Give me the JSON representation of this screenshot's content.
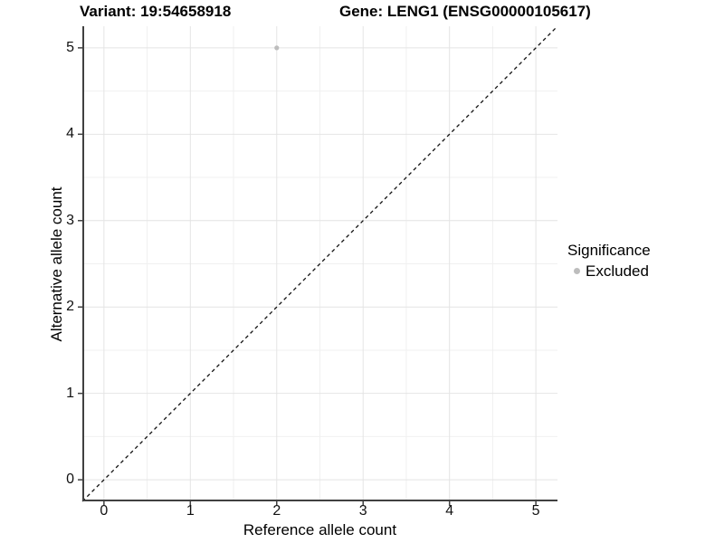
{
  "chart_data": {
    "type": "scatter",
    "title_left": "Variant: 19:54658918",
    "title_right": "Gene: LENG1 (ENSG00000105617)",
    "xlabel": "Reference allele count",
    "ylabel": "Alternative allele count",
    "xlim": [
      -0.25,
      5.25
    ],
    "ylim": [
      -0.25,
      5.25
    ],
    "xticks": [
      0,
      1,
      2,
      3,
      4,
      5
    ],
    "yticks": [
      0,
      1,
      2,
      3,
      4,
      5
    ],
    "minor_gridlines_at": [
      0.5,
      1.5,
      2.5,
      3.5,
      4.5
    ],
    "grid": "major+minor",
    "identity_line": {
      "style": "dashed",
      "from": -0.25,
      "to": 5.25,
      "color": "#111111"
    },
    "series": [
      {
        "name": "Excluded",
        "color": "#BDBDBD",
        "points": [
          {
            "x": 2,
            "y": 5
          }
        ]
      }
    ],
    "legend": {
      "title": "Significance",
      "position": "right",
      "items": [
        {
          "label": "Excluded",
          "color": "#BDBDBD"
        }
      ]
    }
  },
  "colors": {
    "background": "#FFFFFF",
    "grid_major": "#E4E4E4",
    "grid_minor": "#F0F0F0",
    "axis_line": "#404040",
    "tick_mark": "#404040",
    "point": "#BDBDBD",
    "text": "#000000"
  }
}
